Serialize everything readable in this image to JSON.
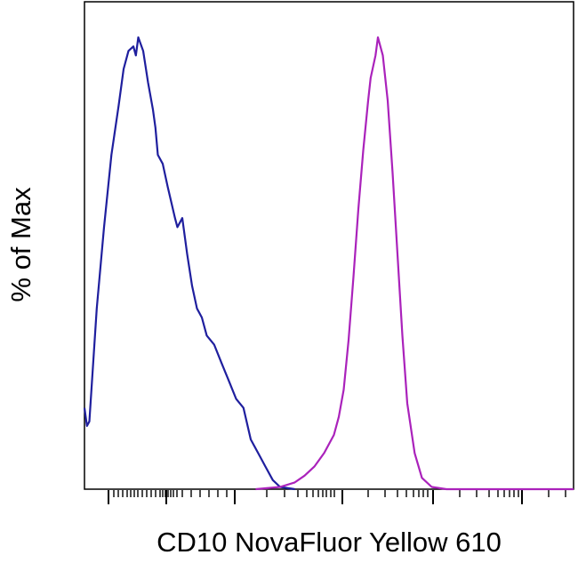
{
  "chart_data": {
    "type": "line",
    "title": "",
    "xlabel": "CD10 NovaFluor Yellow 610",
    "ylabel": "% of Max",
    "x_scale": "logicle",
    "xlim": [
      0,
      100
    ],
    "ylim": [
      0,
      100
    ],
    "x_tick_labels": [],
    "y_tick_labels": [],
    "grid": false,
    "legend": "none",
    "series": [
      {
        "color": "#1f1f9e",
        "x": [
          0.0,
          0.5,
          1.0,
          2.5,
          4.0,
          5.5,
          7.0,
          8.0,
          9.0,
          10.0,
          10.5,
          11.0,
          12.0,
          13.0,
          14.0,
          14.5,
          15.0,
          16.0,
          17.0,
          18.5,
          19.0,
          20.0,
          21.0,
          22.0,
          23.0,
          24.0,
          25.0,
          26.5,
          28.0,
          29.5,
          31.0,
          32.5,
          34.0,
          35.5,
          37.0,
          38.5,
          40.0,
          43.0
        ],
        "y": [
          18,
          14,
          15,
          40,
          58,
          74,
          85,
          93,
          97,
          98,
          96,
          100,
          97,
          90,
          84,
          80,
          74,
          72,
          67,
          60,
          58,
          60,
          52,
          45,
          40,
          38,
          34,
          32,
          28,
          24,
          20,
          18,
          11,
          8,
          5,
          2,
          0.5,
          0
        ]
      },
      {
        "color": "#aa22bb",
        "x": [
          35.0,
          40.0,
          43.0,
          45.0,
          47.0,
          49.0,
          51.0,
          52.0,
          53.0,
          54.0,
          55.0,
          56.0,
          57.0,
          58.0,
          58.5,
          59.5,
          60.0,
          61.0,
          62.0,
          63.0,
          64.0,
          65.0,
          66.0,
          67.5,
          69.0,
          71.0,
          74.0,
          77.0,
          100.0
        ],
        "y": [
          0,
          0.5,
          1.5,
          3,
          5,
          8,
          12,
          16,
          22,
          33,
          47,
          62,
          75,
          86,
          91,
          96,
          100,
          96,
          86,
          70,
          52,
          34,
          19,
          8,
          2.5,
          0.5,
          0,
          0,
          0
        ]
      }
    ]
  }
}
